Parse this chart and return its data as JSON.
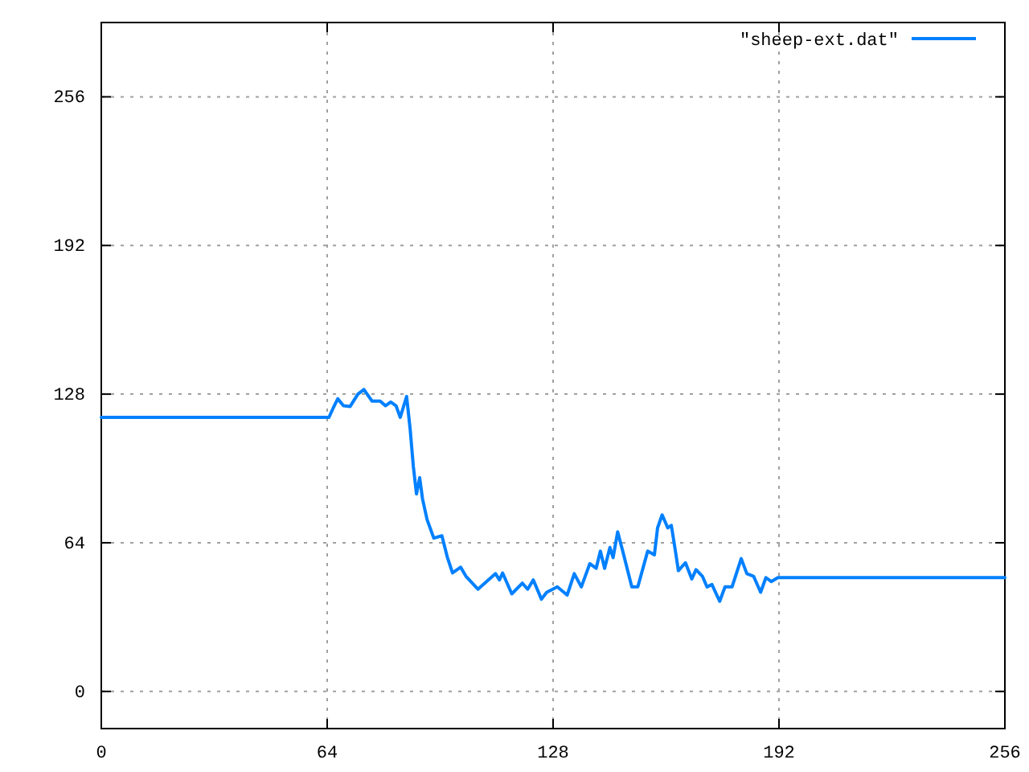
{
  "chart_data": {
    "type": "line",
    "x": [
      0,
      64.5,
      66,
      67,
      68.6,
      70.5,
      72.7,
      74.4,
      76.7,
      79,
      80.5,
      82,
      83.5,
      84.7,
      86.5,
      87.5,
      88.4,
      89.3,
      90.2,
      91,
      92.3,
      94.2,
      96.5,
      98,
      99.5,
      101.8,
      103.3,
      106.7,
      111.7,
      112.8,
      113.7,
      116.3,
      119.3,
      120.8,
      122.4,
      124.7,
      126.2,
      129.2,
      132,
      134,
      136,
      138.4,
      140.2,
      141.4,
      142.6,
      144.1,
      145,
      146.3,
      147.8,
      150.3,
      152,
      154.8,
      156.7,
      157.6,
      158.9,
      160.5,
      161.5,
      162.7,
      163.5,
      165.5,
      167.3,
      168.5,
      170.3,
      171.6,
      173,
      175.2,
      176.7,
      178.7,
      181.3,
      182.9,
      184.8,
      186.8,
      188.3,
      189.8,
      191.7,
      256
    ],
    "series": [
      {
        "name": "\"sheep-ext.dat\"",
        "color": "#0080ff",
        "values": [
          118,
          118,
          123,
          126,
          123,
          122.7,
          128,
          130,
          125,
          125,
          123,
          124.6,
          123,
          118,
          127,
          113,
          97,
          85,
          92,
          83,
          74,
          66,
          67,
          58,
          51,
          53.5,
          49.6,
          44,
          50.7,
          48,
          51,
          42,
          46.6,
          44,
          48,
          39.7,
          42.7,
          45,
          41.5,
          50.7,
          45,
          55,
          53,
          60.4,
          53,
          62,
          57.6,
          68.7,
          60,
          45,
          45,
          60.4,
          58.8,
          70.4,
          76,
          70.4,
          71.5,
          60,
          52,
          55.4,
          48.4,
          52.4,
          49.6,
          45,
          46,
          38.8,
          45,
          45,
          57.2,
          50.7,
          49.6,
          42.7,
          49,
          47.3,
          49,
          49
        ]
      }
    ],
    "xlim": [
      0,
      256
    ],
    "ylim": [
      -16,
      288
    ],
    "xticks": [
      0,
      64,
      128,
      192,
      256
    ],
    "yticks": [
      0,
      64,
      128,
      192,
      256
    ],
    "grid": true,
    "legend": "top right"
  }
}
